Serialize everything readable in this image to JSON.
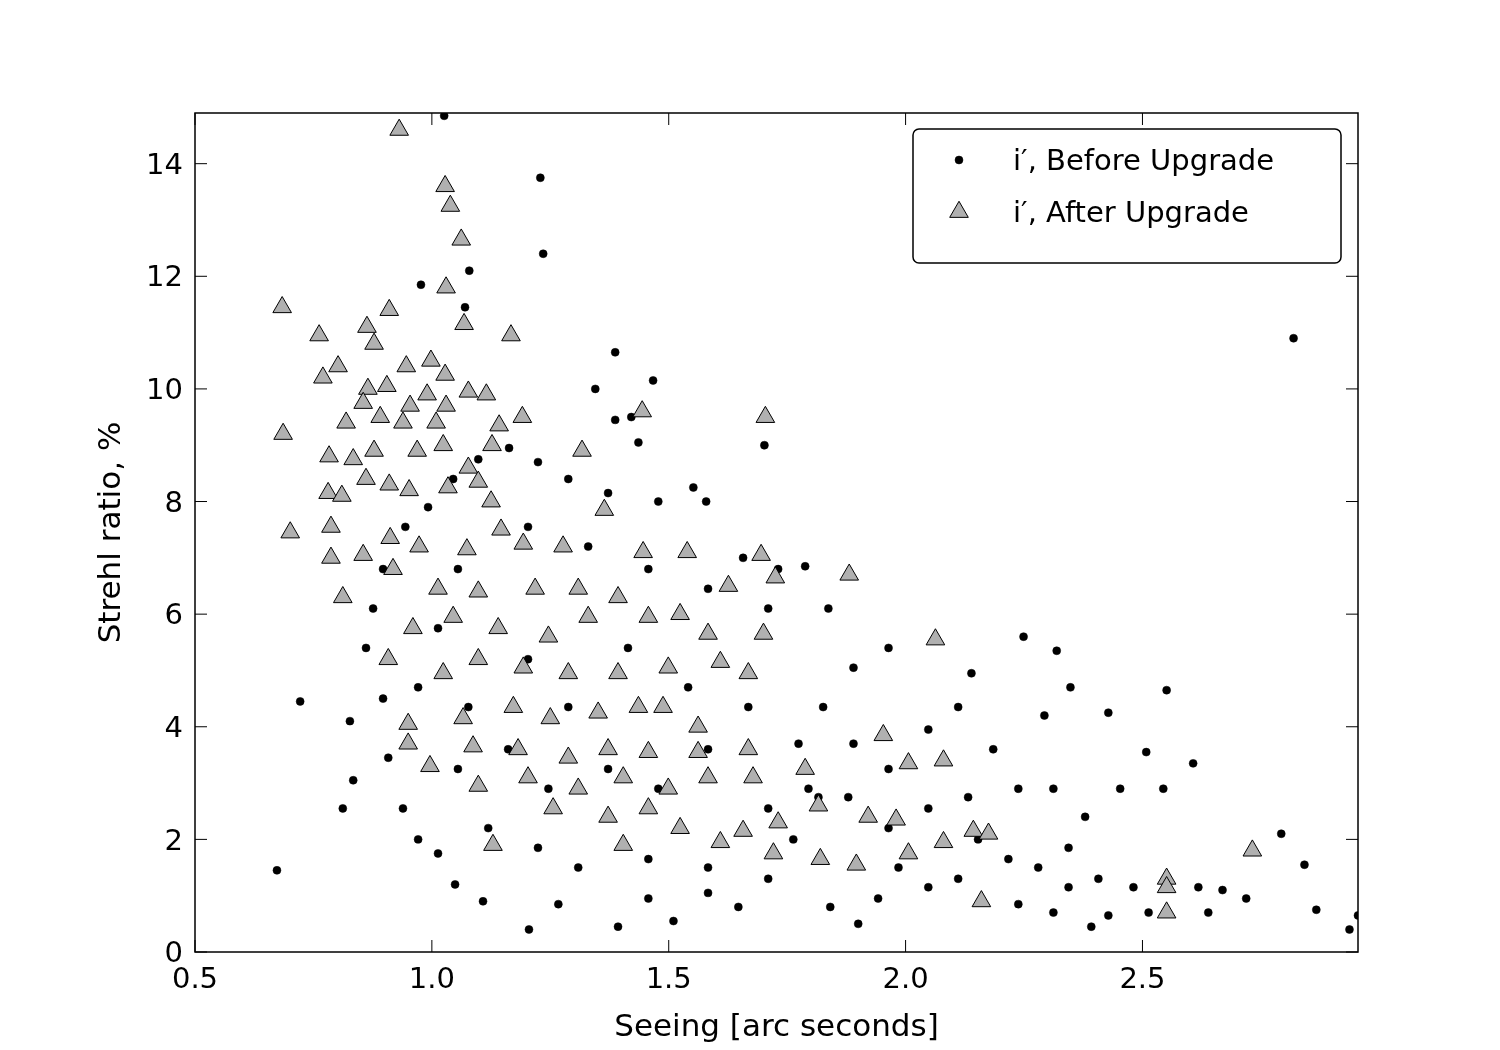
{
  "chart_data": {
    "type": "scatter",
    "xlabel": "Seeing [arc seconds]",
    "ylabel": "Strehl ratio, %",
    "xlim": [
      0.5,
      2.955
    ],
    "ylim": [
      0,
      14.9
    ],
    "xticks": [
      0.5,
      {
        "value": 1,
        "label": "1.0"
      },
      1.5,
      {
        "value": 2,
        "label": "2.0"
      },
      2.5
    ],
    "yticks": [
      0,
      2,
      4,
      6,
      8,
      10,
      12,
      14
    ],
    "grid": false,
    "legend": "top right",
    "series": [
      {
        "name": "i′, Before Upgrade",
        "color": "#000000",
        "marker": "circle",
        "x": [
          1.026,
          1.229,
          1.235,
          0.977,
          1.079,
          1.07,
          2.819,
          1.387,
          1.467,
          1.345,
          0.673,
          0.722,
          0.827,
          0.834,
          0.812,
          1.387,
          1.421,
          1.436,
          1.702,
          2.937,
          2.955,
          2.842,
          2.867,
          2.793,
          2.551,
          2.719,
          2.669,
          2.618,
          2.639,
          2.481,
          2.428,
          2.392,
          2.312,
          2.238,
          2.293,
          2.428,
          2.348,
          2.319,
          2.249,
          2.139,
          2.508,
          2.544,
          2.607,
          2.453,
          2.379,
          2.344,
          2.28,
          2.217,
          2.153,
          2.111,
          2.048,
          1.985,
          1.942,
          1.9,
          1.841,
          2.238,
          2.185,
          2.111,
          2.048,
          1.964,
          1.89,
          1.826,
          1.774,
          1.89,
          1.964,
          1.816,
          1.763,
          1.71,
          1.647,
          1.583,
          1.51,
          1.457,
          1.393,
          1.267,
          1.205,
          1.108,
          1.049,
          1.013,
          0.971,
          0.939,
          0.908,
          0.897,
          0.861,
          0.876,
          0.897,
          0.944,
          0.992,
          1.045,
          1.098,
          1.163,
          1.224,
          1.288,
          1.372,
          1.478,
          1.579,
          1.552,
          1.657,
          1.731,
          1.788,
          1.837,
          1.71,
          1.583,
          1.457,
          1.33,
          1.203,
          1.055,
          1.013,
          0.971,
          1.077,
          1.203,
          1.288,
          1.414,
          1.541,
          1.668,
          1.583,
          1.478,
          1.372,
          1.246,
          1.161,
          1.055,
          1.119,
          1.224,
          1.309,
          1.457,
          1.583,
          1.71,
          1.795,
          1.879,
          1.964,
          2.048,
          2.132,
          2.312,
          2.344,
          2.513,
          2.407
        ],
        "values": [
          14.85,
          13.75,
          12.4,
          11.85,
          12.1,
          11.45,
          10.9,
          10.65,
          10.15,
          10.0,
          1.45,
          4.45,
          4.1,
          3.05,
          2.55,
          9.45,
          9.5,
          9.05,
          9.0,
          0.4,
          0.65,
          1.55,
          0.75,
          2.1,
          4.65,
          0.95,
          1.1,
          1.15,
          0.7,
          1.15,
          0.65,
          0.45,
          0.7,
          0.85,
          4.2,
          4.25,
          4.7,
          5.35,
          5.6,
          4.95,
          3.55,
          2.9,
          3.35,
          2.9,
          2.4,
          1.85,
          1.5,
          1.65,
          2.0,
          1.3,
          1.15,
          1.5,
          0.95,
          0.5,
          0.8,
          2.9,
          3.6,
          4.35,
          3.95,
          5.4,
          5.05,
          4.35,
          3.7,
          3.7,
          3.25,
          2.75,
          2.0,
          1.3,
          0.8,
          1.05,
          0.55,
          0.95,
          0.45,
          0.85,
          0.4,
          0.9,
          1.2,
          1.75,
          2.0,
          2.55,
          3.45,
          4.5,
          5.4,
          6.1,
          6.8,
          7.55,
          7.9,
          8.4,
          8.75,
          8.95,
          8.7,
          8.4,
          8.15,
          8.0,
          8.0,
          8.25,
          7.0,
          6.8,
          6.85,
          6.1,
          6.1,
          6.45,
          6.8,
          7.2,
          7.55,
          6.8,
          5.75,
          4.7,
          4.35,
          5.2,
          4.35,
          5.4,
          4.7,
          4.35,
          3.6,
          2.9,
          3.25,
          2.9,
          3.6,
          3.25,
          2.2,
          1.85,
          1.5,
          1.65,
          1.5,
          2.55,
          2.9,
          2.75,
          2.2,
          2.55,
          2.75,
          2.9,
          1.15,
          0.7,
          1.3
        ]
      },
      {
        "name": "i′, After Upgrade",
        "color": "#b0b0b0",
        "marker": "triangle",
        "x": [
          0.931,
          1.028,
          1.039,
          1.062,
          1.03,
          1.068,
          1.167,
          0.684,
          0.762,
          0.863,
          0.91,
          0.878,
          0.77,
          0.802,
          0.946,
          0.998,
          1.028,
          0.865,
          0.905,
          1.077,
          1.115,
          0.686,
          0.855,
          0.954,
          0.99,
          1.03,
          1.191,
          1.444,
          1.704,
          0.819,
          0.891,
          0.939,
          1.009,
          1.142,
          0.783,
          0.834,
          0.878,
          0.969,
          1.024,
          1.077,
          1.127,
          1.317,
          0.701,
          0.781,
          0.81,
          0.861,
          0.91,
          0.952,
          1.034,
          1.098,
          1.125,
          1.364,
          0.787,
          0.855,
          0.912,
          0.973,
          1.074,
          1.146,
          1.193,
          1.277,
          1.446,
          1.539,
          1.695,
          0.787,
          0.812,
          1.725,
          1.881,
          1.626,
          2.063,
          0.918,
          1.013,
          1.098,
          1.218,
          1.309,
          1.393,
          0.96,
          1.045,
          1.14,
          1.246,
          1.33,
          1.457,
          1.524,
          1.583,
          1.7,
          0.908,
          1.024,
          1.098,
          1.193,
          1.288,
          1.393,
          1.499,
          1.609,
          1.668,
          0.95,
          1.066,
          1.172,
          1.25,
          1.351,
          1.436,
          1.488,
          1.562,
          0.95,
          1.087,
          1.182,
          1.288,
          1.372,
          1.457,
          1.562,
          1.668,
          0.996,
          1.098,
          1.203,
          1.309,
          1.404,
          1.499,
          1.583,
          1.678,
          1.788,
          1.129,
          1.256,
          1.372,
          1.457,
          1.524,
          1.609,
          1.657,
          1.731,
          1.816,
          1.921,
          1.98,
          1.404,
          1.721,
          1.82,
          1.896,
          2.006,
          2.08,
          2.143,
          2.175,
          2.006,
          2.08,
          1.953,
          2.16,
          2.551,
          2.551,
          2.551,
          2.732
        ],
        "values": [
          14.6,
          13.6,
          13.25,
          12.65,
          11.8,
          11.15,
          10.95,
          11.45,
          10.95,
          11.1,
          11.4,
          10.8,
          10.2,
          10.4,
          10.4,
          10.5,
          10.25,
          10.0,
          10.05,
          9.95,
          9.9,
          9.2,
          9.75,
          9.7,
          9.9,
          9.7,
          9.5,
          9.6,
          9.5,
          9.4,
          9.5,
          9.4,
          9.4,
          9.35,
          8.8,
          8.75,
          8.9,
          8.9,
          9.0,
          8.6,
          9.0,
          8.9,
          7.45,
          8.15,
          8.1,
          8.4,
          8.3,
          8.2,
          8.25,
          8.35,
          8.0,
          7.85,
          7.55,
          7.05,
          7.35,
          7.2,
          7.15,
          7.5,
          7.25,
          7.2,
          7.1,
          7.1,
          7.05,
          7.0,
          6.3,
          6.65,
          6.7,
          6.5,
          5.55,
          6.8,
          6.45,
          6.4,
          6.45,
          6.45,
          6.3,
          5.75,
          5.95,
          5.75,
          5.6,
          5.95,
          5.95,
          6.0,
          5.65,
          5.65,
          5.2,
          4.95,
          5.2,
          5.05,
          4.95,
          4.95,
          5.05,
          5.15,
          4.95,
          4.05,
          4.15,
          4.35,
          4.15,
          4.25,
          4.35,
          4.35,
          4.0,
          3.7,
          3.65,
          3.6,
          3.45,
          3.6,
          3.55,
          3.55,
          3.6,
          3.3,
          2.95,
          3.1,
          2.9,
          3.1,
          2.9,
          3.1,
          3.1,
          3.25,
          1.9,
          2.55,
          2.4,
          2.55,
          2.2,
          1.95,
          2.15,
          2.3,
          2.6,
          2.4,
          2.35,
          1.9,
          1.75,
          1.65,
          1.55,
          1.75,
          1.95,
          2.15,
          2.1,
          3.35,
          3.4,
          3.85,
          0.9,
          1.3,
          1.15,
          0.7,
          1.8
        ]
      }
    ]
  }
}
